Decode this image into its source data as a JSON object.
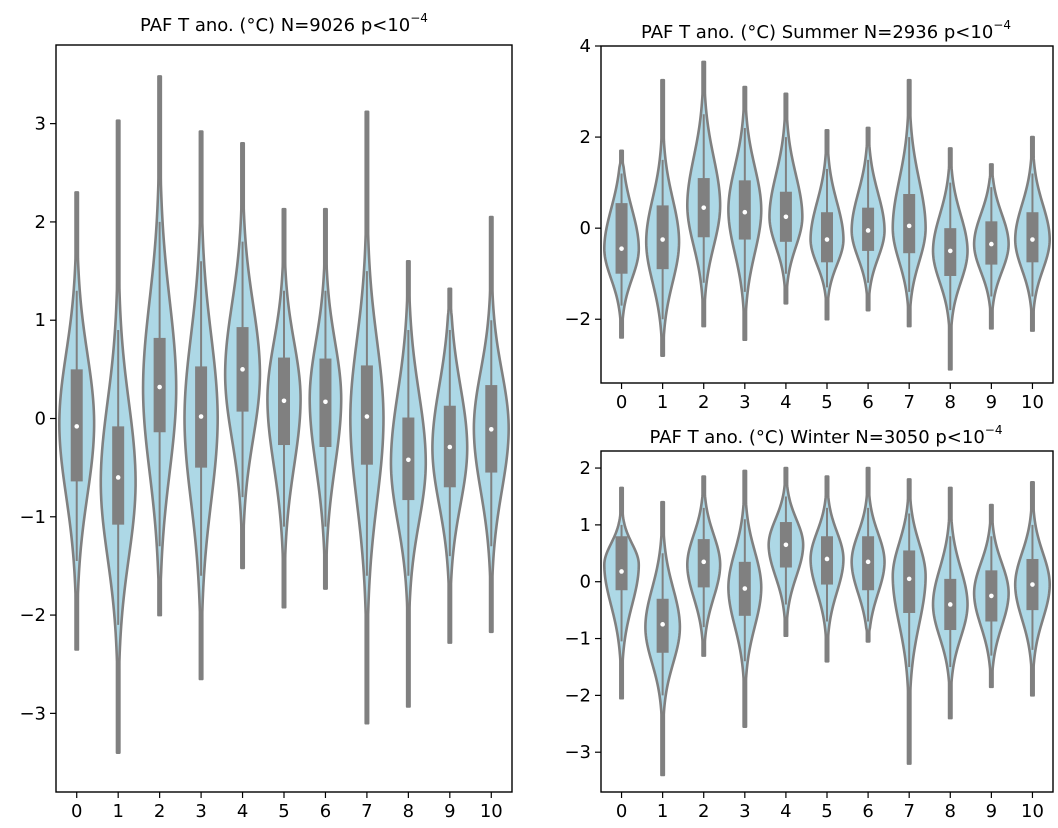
{
  "colors": {
    "violin_fill": "#add8e6",
    "violin_edge": "#808080",
    "box": "#808080",
    "median": "#ffffff",
    "axes": "#000000"
  },
  "chart_data": [
    {
      "id": "all",
      "type": "violin",
      "title": {
        "main": "PAF T ano. (°C) N=9026 p<10",
        "sup": "−4"
      },
      "xlabel": "",
      "ylabel": "",
      "categories": [
        "0",
        "1",
        "2",
        "3",
        "4",
        "5",
        "6",
        "7",
        "8",
        "9",
        "10"
      ],
      "ylim": [
        -3.8,
        3.8
      ],
      "yticks": [
        -3,
        -2,
        -1,
        0,
        1,
        2,
        3
      ],
      "yticklabels": [
        "−3",
        "−2",
        "−1",
        "0",
        "1",
        "2",
        "3"
      ],
      "grid": false,
      "series": [
        {
          "cat": "0",
          "min": -2.35,
          "q1": -0.64,
          "median": -0.08,
          "q3": 0.5,
          "max": 2.3,
          "whisker_low": -1.45,
          "whisker_high": 1.3,
          "mode": -0.05,
          "width": 0.42
        },
        {
          "cat": "1",
          "min": -3.4,
          "q1": -1.08,
          "median": -0.6,
          "q3": -0.08,
          "max": 3.03,
          "whisker_low": -2.1,
          "whisker_high": 0.9,
          "mode": -0.65,
          "width": 0.42
        },
        {
          "cat": "2",
          "min": -2.0,
          "q1": -0.14,
          "median": 0.32,
          "q3": 0.82,
          "max": 3.48,
          "whisker_low": -1.3,
          "whisker_high": 2.0,
          "mode": 0.3,
          "width": 0.4
        },
        {
          "cat": "3",
          "min": -2.65,
          "q1": -0.5,
          "median": 0.02,
          "q3": 0.53,
          "max": 2.92,
          "whisker_low": -1.6,
          "whisker_high": 1.6,
          "mode": 0.0,
          "width": 0.4
        },
        {
          "cat": "4",
          "min": -1.52,
          "q1": 0.07,
          "median": 0.5,
          "q3": 0.93,
          "max": 2.8,
          "whisker_low": -0.8,
          "whisker_high": 1.8,
          "mode": 0.45,
          "width": 0.42
        },
        {
          "cat": "5",
          "min": -1.92,
          "q1": -0.27,
          "median": 0.18,
          "q3": 0.62,
          "max": 2.13,
          "whisker_low": -1.1,
          "whisker_high": 1.3,
          "mode": 0.2,
          "width": 0.4
        },
        {
          "cat": "6",
          "min": -1.73,
          "q1": -0.29,
          "median": 0.17,
          "q3": 0.61,
          "max": 2.13,
          "whisker_low": -1.1,
          "whisker_high": 1.3,
          "mode": 0.2,
          "width": 0.38
        },
        {
          "cat": "7",
          "min": -3.1,
          "q1": -0.47,
          "median": 0.02,
          "q3": 0.54,
          "max": 3.12,
          "whisker_low": -1.6,
          "whisker_high": 1.5,
          "mode": 0.0,
          "width": 0.4
        },
        {
          "cat": "8",
          "min": -2.93,
          "q1": -0.83,
          "median": -0.42,
          "q3": 0.01,
          "max": 1.6,
          "whisker_low": -1.6,
          "whisker_high": 0.9,
          "mode": -0.45,
          "width": 0.42
        },
        {
          "cat": "9",
          "min": -2.28,
          "q1": -0.7,
          "median": -0.29,
          "q3": 0.13,
          "max": 1.32,
          "whisker_low": -1.4,
          "whisker_high": 0.9,
          "mode": -0.3,
          "width": 0.42
        },
        {
          "cat": "10",
          "min": -2.17,
          "q1": -0.55,
          "median": -0.11,
          "q3": 0.34,
          "max": 2.05,
          "whisker_low": -1.3,
          "whisker_high": 1.0,
          "mode": -0.1,
          "width": 0.42
        }
      ]
    },
    {
      "id": "summer",
      "type": "violin",
      "title": {
        "main": "PAF T ano. (°C) Summer N=2936 p<10",
        "sup": "−4"
      },
      "xlabel": "",
      "ylabel": "",
      "categories": [
        "0",
        "1",
        "2",
        "3",
        "4",
        "5",
        "6",
        "7",
        "8",
        "9",
        "10"
      ],
      "ylim": [
        -3.4,
        4.0
      ],
      "yticks": [
        -2,
        0,
        2,
        4
      ],
      "yticklabels": [
        "−2",
        "0",
        "2",
        "4"
      ],
      "grid": false,
      "series": [
        {
          "cat": "0",
          "min": -2.4,
          "q1": -1.0,
          "median": -0.45,
          "q3": 0.55,
          "max": 1.7,
          "whisker_low": -1.7,
          "whisker_high": 1.2,
          "mode": -0.45,
          "width": 0.42
        },
        {
          "cat": "1",
          "min": -2.8,
          "q1": -0.9,
          "median": -0.25,
          "q3": 0.5,
          "max": 3.25,
          "whisker_low": -2.0,
          "whisker_high": 1.5,
          "mode": -0.3,
          "width": 0.4
        },
        {
          "cat": "2",
          "min": -2.15,
          "q1": -0.2,
          "median": 0.45,
          "q3": 1.1,
          "max": 3.65,
          "whisker_low": -1.2,
          "whisker_high": 2.5,
          "mode": 0.5,
          "width": 0.4
        },
        {
          "cat": "3",
          "min": -2.45,
          "q1": -0.25,
          "median": 0.35,
          "q3": 1.05,
          "max": 3.1,
          "whisker_low": -1.4,
          "whisker_high": 2.2,
          "mode": 0.4,
          "width": 0.4
        },
        {
          "cat": "4",
          "min": -1.65,
          "q1": -0.3,
          "median": 0.25,
          "q3": 0.8,
          "max": 2.95,
          "whisker_low": -1.0,
          "whisker_high": 2.0,
          "mode": 0.25,
          "width": 0.4
        },
        {
          "cat": "5",
          "min": -2.0,
          "q1": -0.75,
          "median": -0.25,
          "q3": 0.35,
          "max": 2.15,
          "whisker_low": -1.3,
          "whisker_high": 1.3,
          "mode": -0.25,
          "width": 0.4
        },
        {
          "cat": "6",
          "min": -1.8,
          "q1": -0.5,
          "median": -0.05,
          "q3": 0.45,
          "max": 2.2,
          "whisker_low": -1.2,
          "whisker_high": 1.5,
          "mode": -0.05,
          "width": 0.4
        },
        {
          "cat": "7",
          "min": -2.15,
          "q1": -0.55,
          "median": 0.05,
          "q3": 0.75,
          "max": 3.25,
          "whisker_low": -1.4,
          "whisker_high": 2.0,
          "mode": 0.0,
          "width": 0.4
        },
        {
          "cat": "8",
          "min": -3.1,
          "q1": -1.05,
          "median": -0.5,
          "q3": 0.0,
          "max": 1.75,
          "whisker_low": -1.8,
          "whisker_high": 1.0,
          "mode": -0.5,
          "width": 0.42
        },
        {
          "cat": "9",
          "min": -2.2,
          "q1": -0.8,
          "median": -0.35,
          "q3": 0.15,
          "max": 1.4,
          "whisker_low": -1.5,
          "whisker_high": 0.9,
          "mode": -0.35,
          "width": 0.42
        },
        {
          "cat": "10",
          "min": -2.25,
          "q1": -0.75,
          "median": -0.25,
          "q3": 0.35,
          "max": 2.0,
          "whisker_low": -1.5,
          "whisker_high": 1.2,
          "mode": -0.25,
          "width": 0.42
        }
      ]
    },
    {
      "id": "winter",
      "type": "violin",
      "title": {
        "main": "PAF T ano. (°C) Winter N=3050 p<10",
        "sup": "−4"
      },
      "xlabel": "",
      "ylabel": "",
      "categories": [
        "0",
        "1",
        "2",
        "3",
        "4",
        "5",
        "6",
        "7",
        "8",
        "9",
        "10"
      ],
      "ylim": [
        -3.7,
        2.3
      ],
      "yticks": [
        -3,
        -2,
        -1,
        0,
        1,
        2
      ],
      "yticklabels": [
        "−3",
        "−2",
        "−1",
        "0",
        "1",
        "2"
      ],
      "grid": false,
      "series": [
        {
          "cat": "0",
          "min": -2.05,
          "q1": -0.15,
          "median": 0.18,
          "q3": 0.8,
          "max": 1.65,
          "whisker_low": -1.05,
          "whisker_high": 1.0,
          "mode": 0.3,
          "width": 0.42
        },
        {
          "cat": "1",
          "min": -3.4,
          "q1": -1.25,
          "median": -0.75,
          "q3": -0.3,
          "max": 1.4,
          "whisker_low": -2.0,
          "whisker_high": 0.5,
          "mode": -0.8,
          "width": 0.42
        },
        {
          "cat": "2",
          "min": -1.3,
          "q1": -0.1,
          "median": 0.35,
          "q3": 0.75,
          "max": 1.85,
          "whisker_low": -0.8,
          "whisker_high": 1.3,
          "mode": 0.3,
          "width": 0.4
        },
        {
          "cat": "3",
          "min": -2.55,
          "q1": -0.6,
          "median": -0.12,
          "q3": 0.35,
          "max": 1.95,
          "whisker_low": -1.4,
          "whisker_high": 1.1,
          "mode": -0.1,
          "width": 0.4
        },
        {
          "cat": "4",
          "min": -0.95,
          "q1": 0.25,
          "median": 0.65,
          "q3": 1.05,
          "max": 2.0,
          "whisker_low": -0.4,
          "whisker_high": 1.5,
          "mode": 0.65,
          "width": 0.42
        },
        {
          "cat": "5",
          "min": -1.4,
          "q1": -0.05,
          "median": 0.4,
          "q3": 0.8,
          "max": 1.85,
          "whisker_low": -0.7,
          "whisker_high": 1.3,
          "mode": 0.4,
          "width": 0.4
        },
        {
          "cat": "6",
          "min": -1.05,
          "q1": -0.15,
          "median": 0.35,
          "q3": 0.8,
          "max": 2.0,
          "whisker_low": -0.7,
          "whisker_high": 1.3,
          "mode": 0.35,
          "width": 0.4
        },
        {
          "cat": "7",
          "min": -3.2,
          "q1": -0.55,
          "median": 0.05,
          "q3": 0.55,
          "max": 1.8,
          "whisker_low": -1.5,
          "whisker_high": 1.2,
          "mode": 0.1,
          "width": 0.4
        },
        {
          "cat": "8",
          "min": -2.4,
          "q1": -0.85,
          "median": -0.4,
          "q3": 0.05,
          "max": 1.65,
          "whisker_low": -1.5,
          "whisker_high": 0.8,
          "mode": -0.4,
          "width": 0.42
        },
        {
          "cat": "9",
          "min": -1.85,
          "q1": -0.7,
          "median": -0.25,
          "q3": 0.2,
          "max": 1.35,
          "whisker_low": -1.3,
          "whisker_high": 0.8,
          "mode": -0.2,
          "width": 0.42
        },
        {
          "cat": "10",
          "min": -2.0,
          "q1": -0.5,
          "median": -0.05,
          "q3": 0.4,
          "max": 1.75,
          "whisker_low": -1.2,
          "whisker_high": 1.0,
          "mode": -0.05,
          "width": 0.42
        }
      ]
    }
  ]
}
